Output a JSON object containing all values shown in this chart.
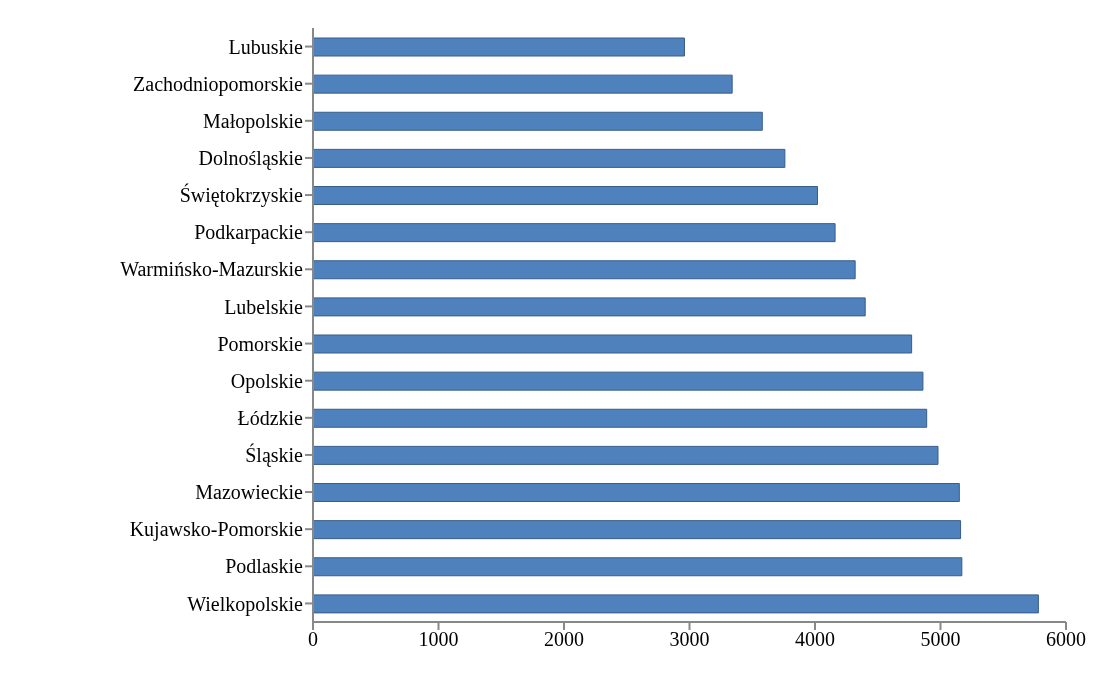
{
  "chart_data": {
    "type": "bar",
    "orientation": "horizontal",
    "categories": [
      "Lubuskie",
      "Zachodniopomorskie",
      "Małopolskie",
      "Dolnośląskie",
      "Świętokrzyskie",
      "Podkarpackie",
      "Warmińsko-Mazurskie",
      "Lubelskie",
      "Pomorskie",
      "Opolskie",
      "Łódzkie",
      "Śląskie",
      "Mazowieckie",
      "Kujawsko-Pomorskie",
      "Podlaskie",
      "Wielkopolskie"
    ],
    "values": [
      2960,
      3340,
      3580,
      3760,
      4020,
      4160,
      4320,
      4400,
      4770,
      4860,
      4890,
      4980,
      5150,
      5160,
      5170,
      5780
    ],
    "color": "#4f81bd",
    "xlim": [
      0,
      6000
    ],
    "xticks": [
      0,
      1000,
      2000,
      3000,
      4000,
      5000,
      6000
    ]
  }
}
